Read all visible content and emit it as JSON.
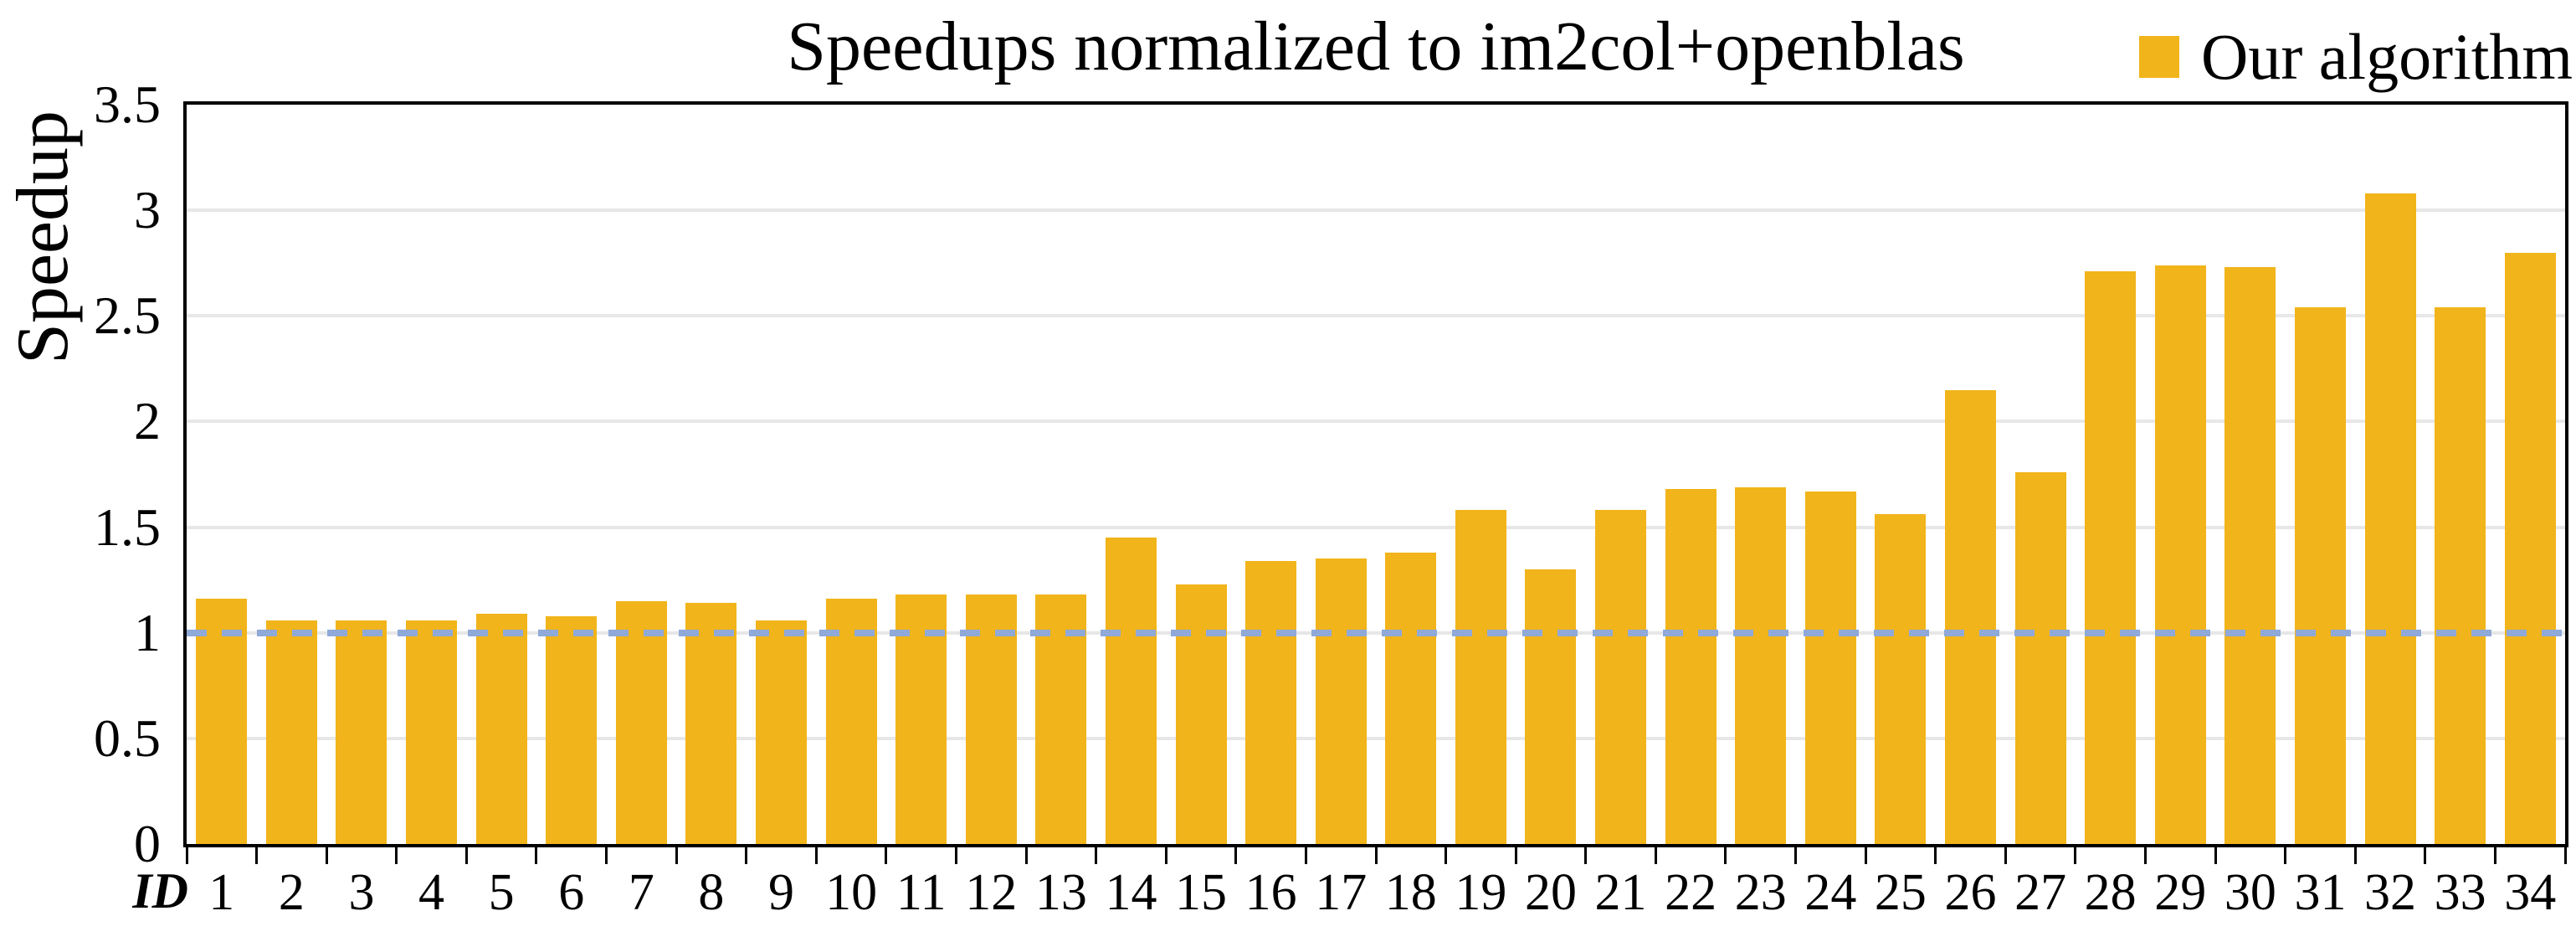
{
  "chart_data": {
    "type": "bar",
    "title": "Speedups normalized to im2col+openblas",
    "ylabel": "Speedup",
    "xlabel": "ID",
    "categories": [
      "1",
      "2",
      "3",
      "4",
      "5",
      "6",
      "7",
      "8",
      "9",
      "10",
      "11",
      "12",
      "13",
      "14",
      "15",
      "16",
      "17",
      "18",
      "19",
      "20",
      "21",
      "22",
      "23",
      "24",
      "25",
      "26",
      "27",
      "28",
      "29",
      "30",
      "31",
      "32",
      "33",
      "34"
    ],
    "series": [
      {
        "name": "Our algorithm",
        "values": [
          1.16,
          1.06,
          1.06,
          1.06,
          1.09,
          1.08,
          1.15,
          1.14,
          1.06,
          1.16,
          1.18,
          1.18,
          1.18,
          1.45,
          1.23,
          1.34,
          1.35,
          1.38,
          1.58,
          1.3,
          1.58,
          1.68,
          1.69,
          1.67,
          1.56,
          2.15,
          1.76,
          2.71,
          2.74,
          2.73,
          2.54,
          3.08,
          2.54,
          2.8
        ]
      }
    ],
    "ylim": [
      0,
      3.5
    ],
    "yticks": [
      "0",
      "0.5",
      "1",
      "1.5",
      "2",
      "2.5",
      "3",
      "3.5"
    ],
    "grid": true,
    "reference_line_y": 1.0,
    "legend_position": "top-right"
  },
  "legend": {
    "label": "Our algorithm"
  },
  "colors": {
    "bar": "#F1B41A",
    "dashed_line": "#8FA9D8",
    "gridline": "#E7E7E7",
    "axis": "#000000",
    "background": "#FFFFFF",
    "text": "#000000"
  }
}
